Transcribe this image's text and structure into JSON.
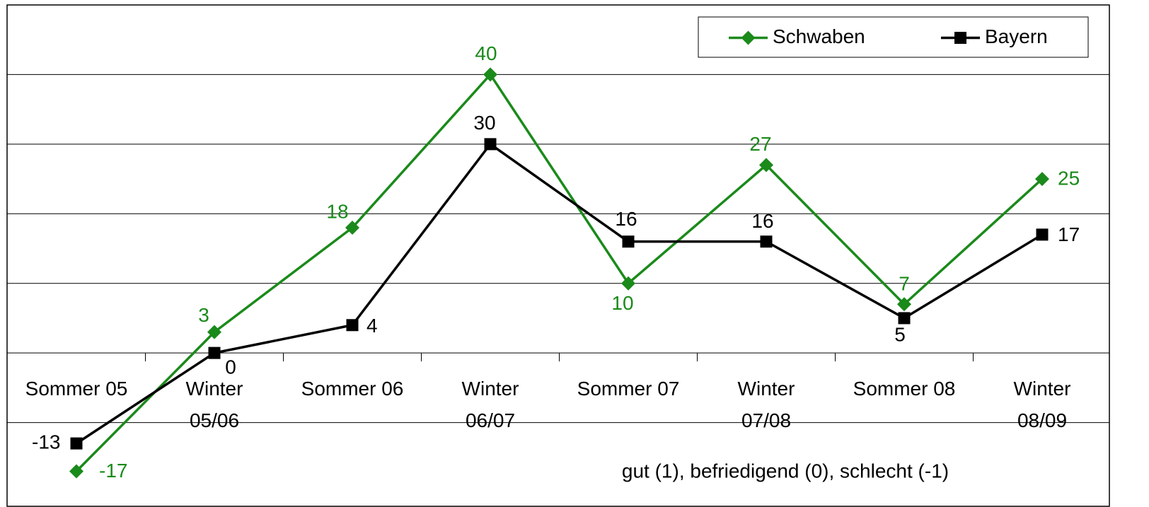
{
  "chart_data": {
    "type": "line",
    "categories": [
      "Sommer 05",
      "Winter\n05/06",
      "Sommer 06",
      "Winter\n06/07",
      "Sommer 07",
      "Winter\n07/08",
      "Sommer 08",
      "Winter\n08/09"
    ],
    "series": [
      {
        "name": "Schwaben",
        "color": "#1a8a1a",
        "marker": "diamond",
        "values": [
          -17,
          3,
          18,
          40,
          10,
          27,
          7,
          25
        ]
      },
      {
        "name": "Bayern",
        "color": "#000000",
        "marker": "square",
        "values": [
          -13,
          0,
          4,
          30,
          16,
          16,
          5,
          17
        ]
      }
    ],
    "ylim": [
      -20,
      50
    ],
    "yticks": [
      -10,
      0,
      10,
      20,
      30,
      40
    ],
    "grid": true,
    "legend": "top-right",
    "annotation": "gut (1), befriedigend (0), schlecht (-1)"
  }
}
